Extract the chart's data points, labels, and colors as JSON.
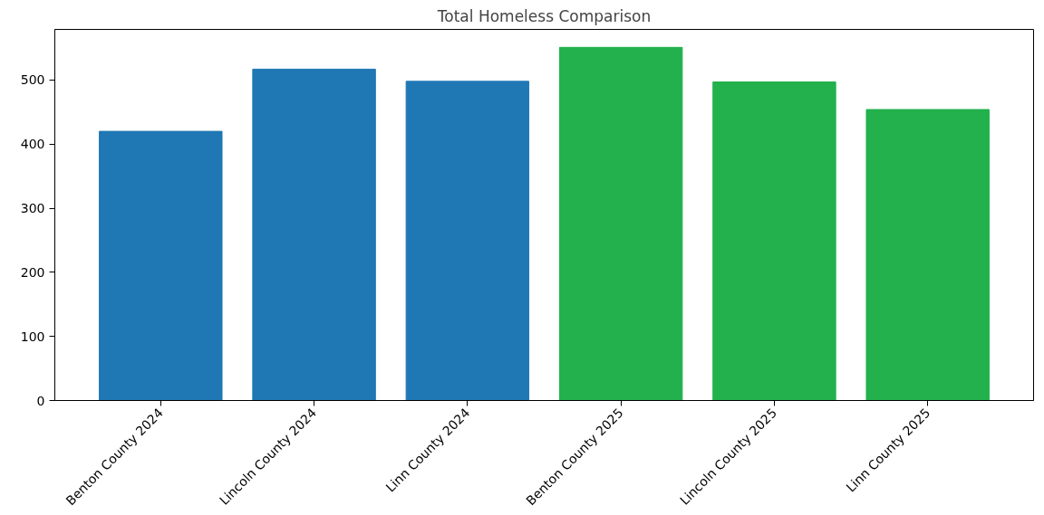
{
  "chart_data": {
    "type": "bar",
    "title": "Total Homeless Comparison",
    "categories": [
      "Benton County 2024",
      "Lincoln County 2024",
      "Linn County 2024",
      "Benton County 2025",
      "Lincoln County 2025",
      "Linn County 2025"
    ],
    "values": [
      420,
      517,
      498,
      551,
      497,
      454
    ],
    "colors": [
      "#1f77b4",
      "#1f77b4",
      "#1f77b4",
      "#22b14c",
      "#22b14c",
      "#22b14c"
    ],
    "ylim": [
      0,
      579
    ],
    "yticks": [
      0,
      100,
      200,
      300,
      400,
      500
    ],
    "grid": false
  }
}
